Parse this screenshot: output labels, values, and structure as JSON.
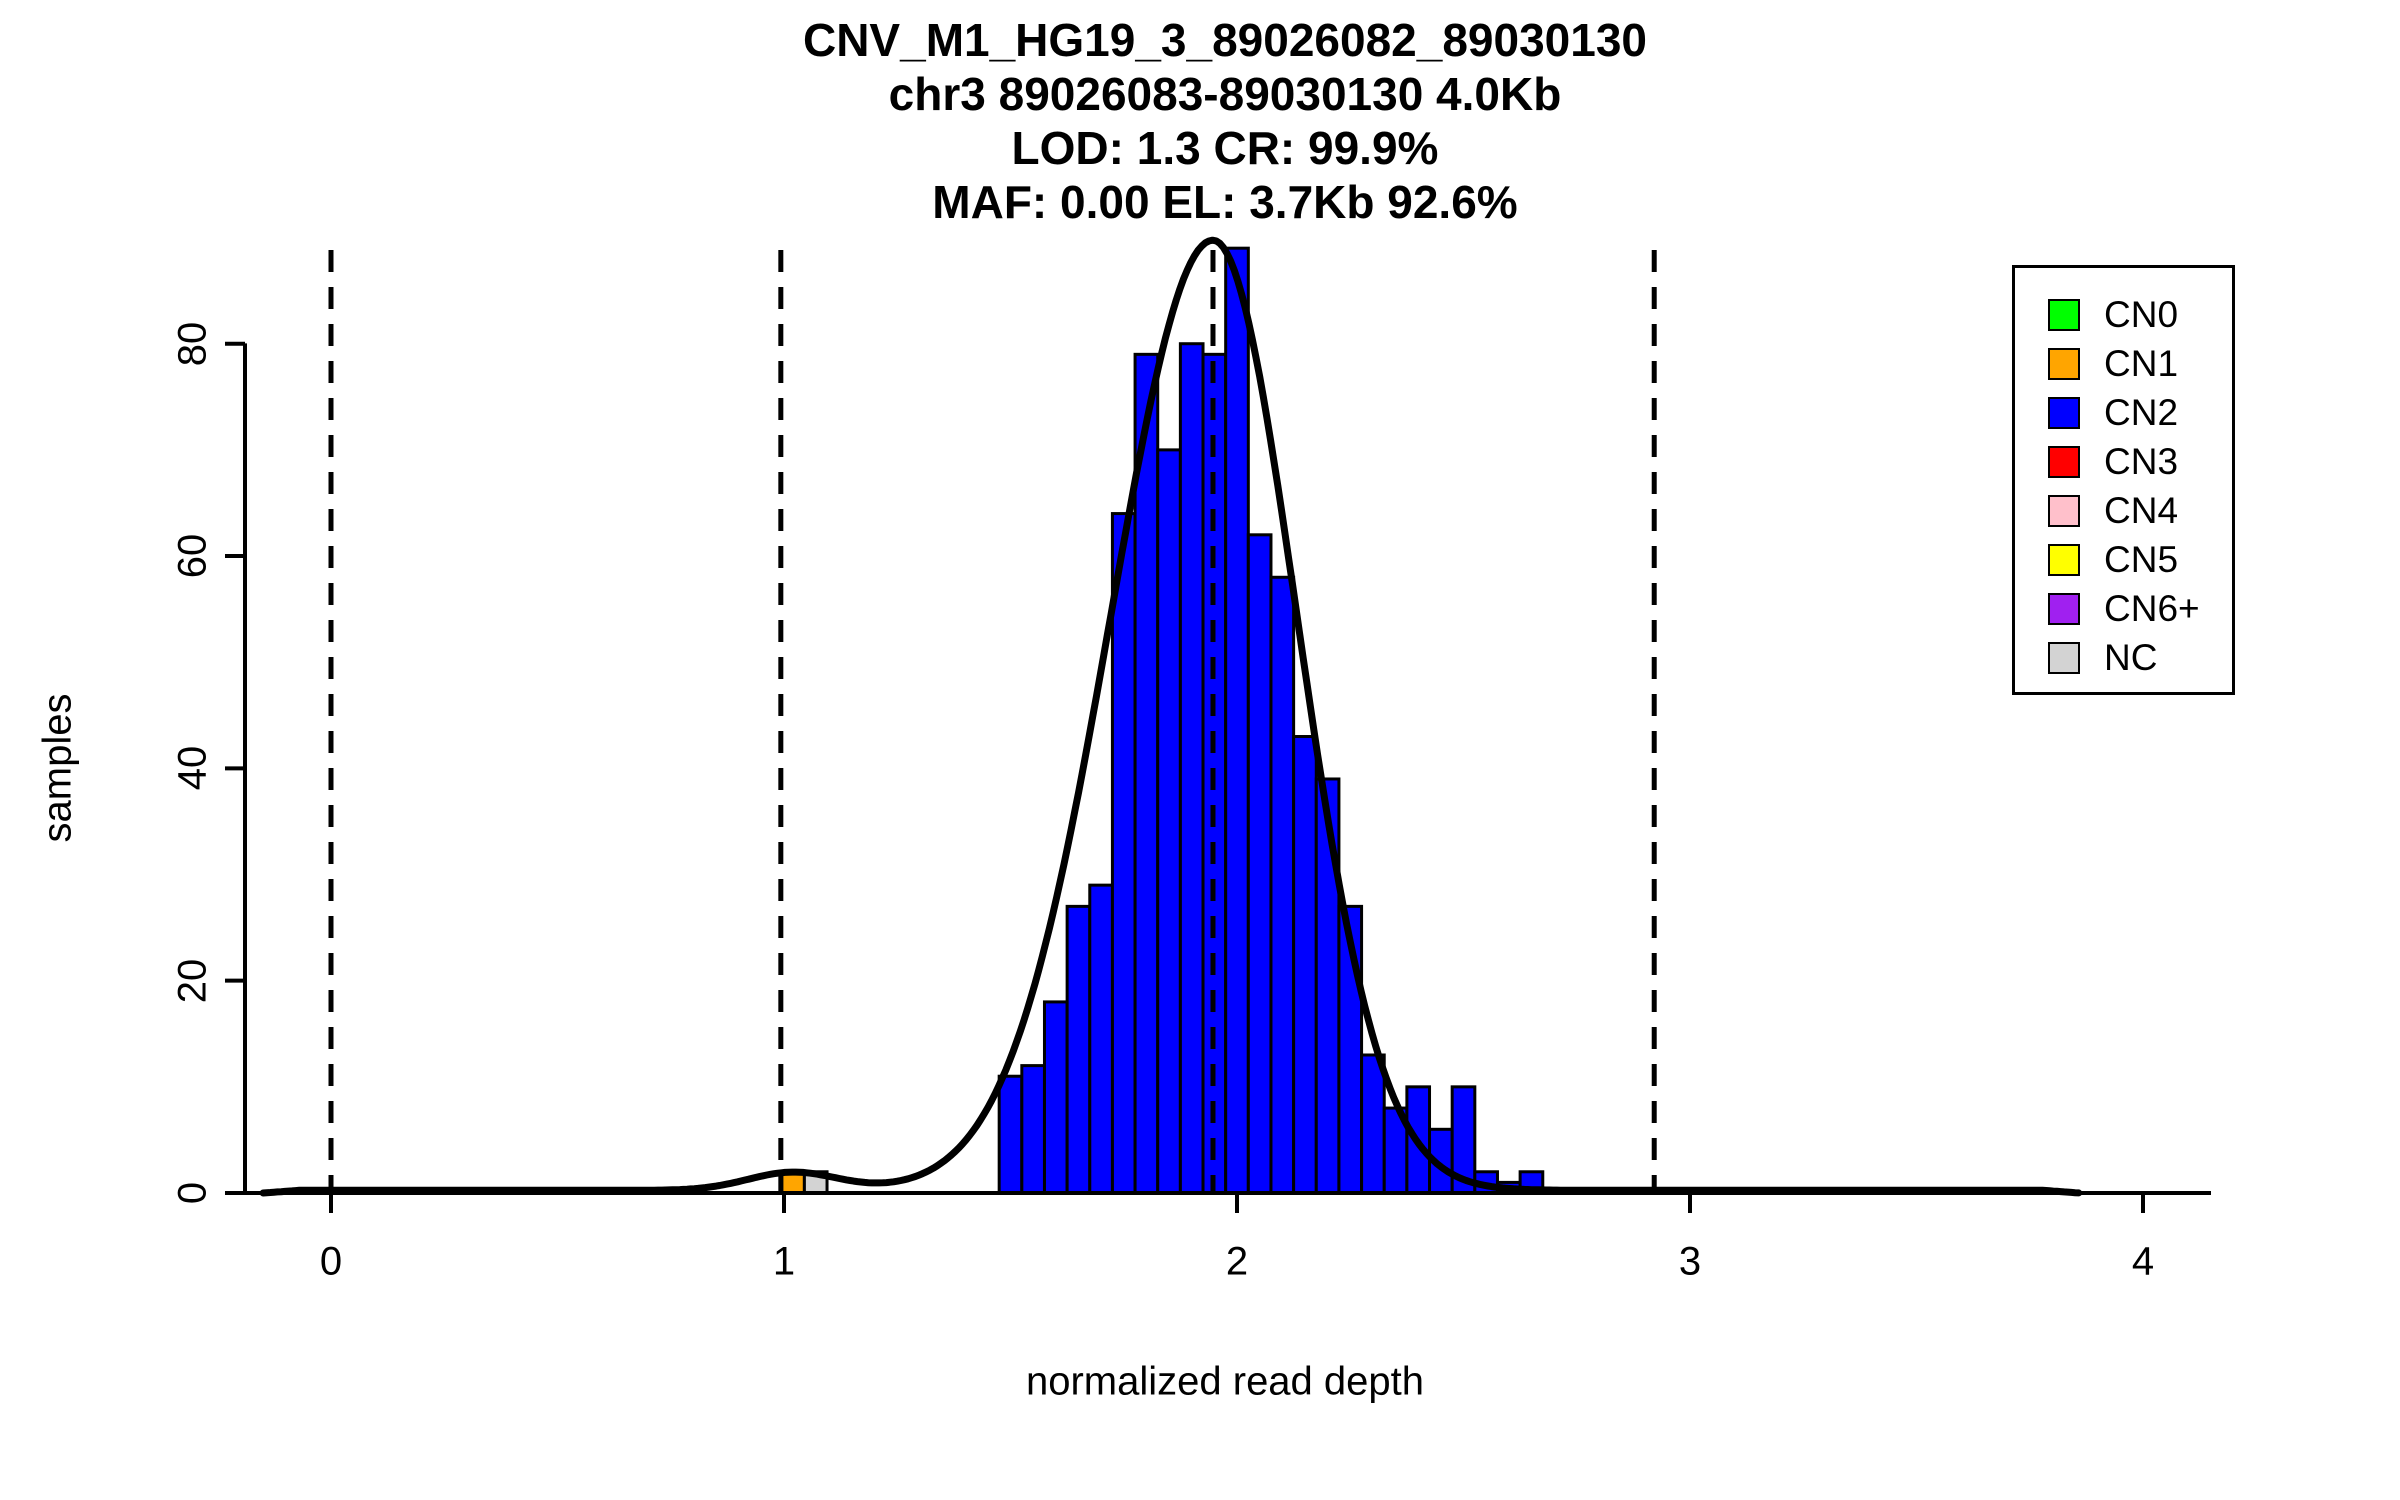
{
  "title": {
    "line1": "CNV_M1_HG19_3_89026082_89030130",
    "line2": "chr3 89026083-89030130 4.0Kb",
    "line3": "LOD: 1.3 CR: 99.9%",
    "line4": "MAF: 0.00 EL: 3.7Kb 92.6%"
  },
  "axes": {
    "xlabel": "normalized read depth",
    "ylabel": "samples"
  },
  "chart_data": {
    "type": "bar",
    "subtype": "histogram-with-density-curve",
    "title": "CNV_M1_HG19_3_89026082_89030130",
    "xlabel": "normalized read depth",
    "ylabel": "samples",
    "xlim": [
      -0.2,
      4.15
    ],
    "ylim": [
      0,
      89.5
    ],
    "grid": false,
    "x_ticks": [
      0,
      1,
      2,
      3,
      4
    ],
    "y_ticks": [
      0,
      20,
      40,
      60,
      80
    ],
    "bar_edge_color": "#000000",
    "main_bins": {
      "cn_class": "CN2",
      "color": "#0000FF",
      "bin_start": 1.475,
      "bin_width": 0.05,
      "values": [
        11,
        12,
        18,
        27,
        29,
        64,
        79,
        70,
        80,
        79,
        89,
        62,
        58,
        43,
        39,
        27,
        13,
        8,
        10,
        6,
        10,
        2,
        1,
        2
      ]
    },
    "extra_bars": [
      {
        "cn_class": "CN1",
        "color": "#FFA500",
        "x_start": 0.995,
        "width": 0.05,
        "value": 2
      },
      {
        "cn_class": "NC",
        "color": "#D3D3D3",
        "x_start": 1.045,
        "width": 0.05,
        "value": 2
      }
    ],
    "dashed_guide_lines_x": [
      0.0,
      0.993,
      1.947,
      2.921
    ],
    "density_curve": {
      "color": "#000000",
      "mu": 1.947,
      "sigma_left": 0.225,
      "sigma_right": 0.185,
      "peak": 89.5,
      "bump_mu": 1.02,
      "bump_sigma": 0.1,
      "bump_amp": 1.7,
      "floor": 0.25,
      "x_start": -0.15,
      "x_end": 3.86
    },
    "legend": {
      "position": "top-right",
      "entries": [
        {
          "label": "CN0",
          "color": "#00FF00"
        },
        {
          "label": "CN1",
          "color": "#FFA500"
        },
        {
          "label": "CN2",
          "color": "#0000FF"
        },
        {
          "label": "CN3",
          "color": "#FF0000"
        },
        {
          "label": "CN4",
          "color": "#FFC0CB"
        },
        {
          "label": "CN5",
          "color": "#FFFF00"
        },
        {
          "label": "CN6+",
          "color": "#A020F0"
        },
        {
          "label": "NC",
          "color": "#D3D3D3"
        }
      ]
    }
  }
}
